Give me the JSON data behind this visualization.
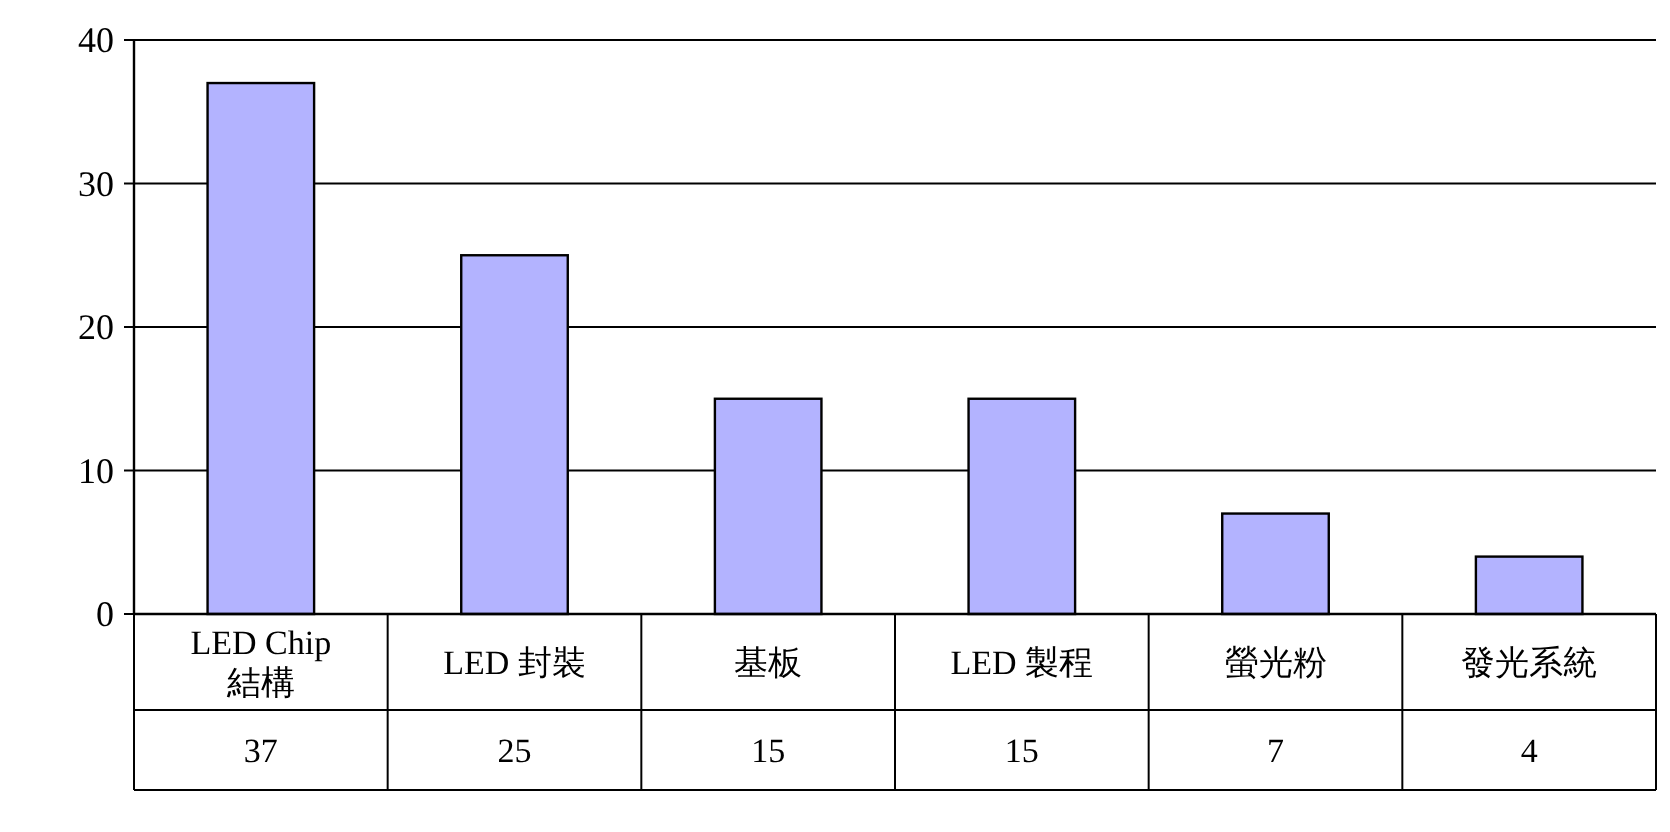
{
  "chart_data": {
    "type": "bar",
    "categories": [
      "LED Chip 結構",
      "LED 封裝",
      "基板",
      "LED 製程",
      "螢光粉",
      "發光系統"
    ],
    "values": [
      37,
      25,
      15,
      15,
      7,
      4
    ],
    "color": "#b3b3ff",
    "ylim": [
      0,
      40
    ],
    "yticks": [
      0,
      10,
      20,
      30,
      40
    ],
    "grid": "y",
    "data_labels": true
  }
}
